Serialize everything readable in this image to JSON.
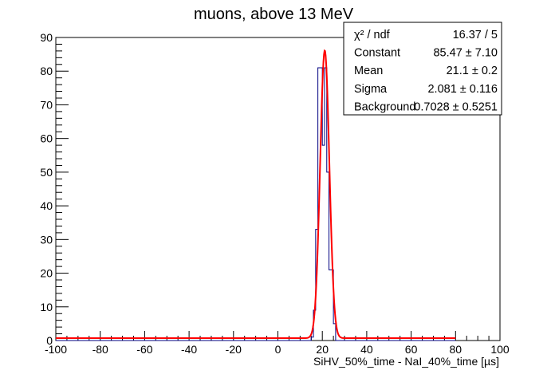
{
  "chart_data": {
    "type": "histogram",
    "title": "muons, above 13 MeV",
    "xlabel": "SiHV_50%_time - NaI_40%_time [µs]",
    "ylabel": "",
    "xlim": [
      -100,
      100
    ],
    "ylim": [
      0,
      90
    ],
    "x_ticks": [
      "-100",
      "-80",
      "-60",
      "-40",
      "-20",
      "0",
      "20",
      "40",
      "60",
      "80",
      "100"
    ],
    "y_ticks": [
      "0",
      "10",
      "20",
      "30",
      "40",
      "50",
      "60",
      "70",
      "80",
      "90"
    ],
    "histogram": {
      "color": "#000080",
      "baseline_range": [
        -100,
        80
      ],
      "bins": [
        {
          "x0": 15,
          "x1": 16,
          "value": 1
        },
        {
          "x0": 16,
          "x1": 17,
          "value": 9
        },
        {
          "x0": 17,
          "x1": 18,
          "value": 33
        },
        {
          "x0": 18,
          "x1": 19,
          "value": 81
        },
        {
          "x0": 19,
          "x1": 20,
          "value": 81
        },
        {
          "x0": 20,
          "x1": 21,
          "value": 58
        },
        {
          "x0": 21,
          "x1": 22,
          "value": 81
        },
        {
          "x0": 22,
          "x1": 23,
          "value": 50
        },
        {
          "x0": 23,
          "x1": 24,
          "value": 21
        },
        {
          "x0": 24,
          "x1": 25,
          "value": 21
        },
        {
          "x0": 25,
          "x1": 26,
          "value": 5
        }
      ]
    },
    "fit": {
      "type": "gaussian_plus_constant",
      "color": "#ff0000",
      "constant": 85.47,
      "mean": 21.1,
      "sigma": 2.081,
      "background": 0.7028,
      "range": [
        -100,
        80
      ]
    },
    "stats_box": {
      "rows": [
        {
          "label": "χ² / ndf",
          "value": "16.37 / 5"
        },
        {
          "label": "Constant",
          "value": "85.47 ± 7.10"
        },
        {
          "label": "Mean",
          "value": "21.1 ± 0.2"
        },
        {
          "label": "Sigma",
          "value": "2.081 ± 0.116"
        },
        {
          "label": "Background",
          "value": "0.7028 ± 0.5251"
        }
      ]
    }
  }
}
